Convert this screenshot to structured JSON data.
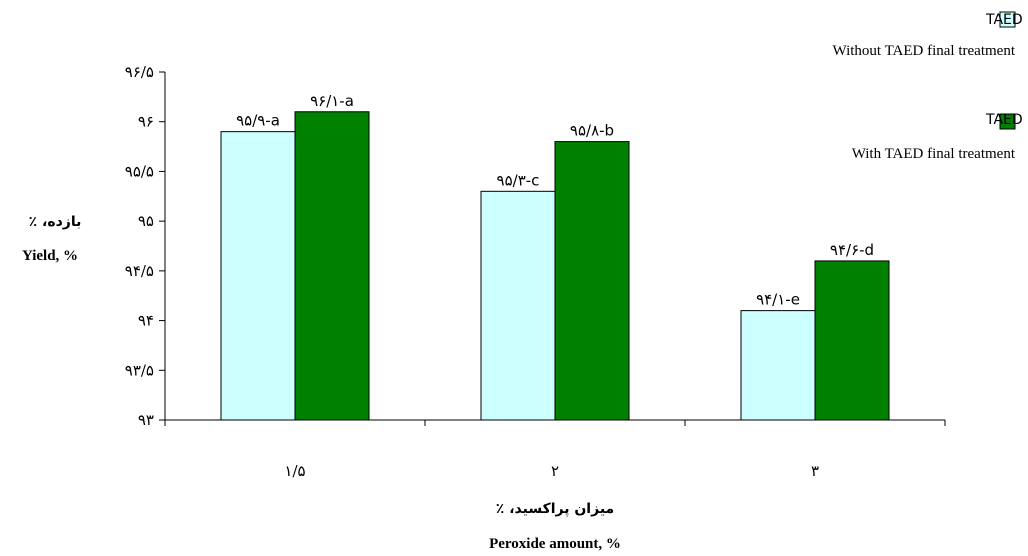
{
  "chart_data": {
    "type": "bar",
    "categories": [
      "۱/۵",
      "۲",
      "۳"
    ],
    "series": [
      {
        "name_fa": "رنگ‌بری بدون تیمار انتهایی TAED",
        "name_en": "Without TAED final treatment",
        "color": "#ccffff",
        "values": [
          95.9,
          95.3,
          94.1
        ],
        "labels": [
          "۹۵/۹-a",
          "۹۵/۳-c",
          "۹۴/۱-e"
        ]
      },
      {
        "name_fa": "رنگ‌بری با تیمار انتهایی TAED",
        "name_en": "With TAED final treatment",
        "color": "#008000",
        "values": [
          96.1,
          95.8,
          94.6
        ],
        "labels": [
          "۹۶/۱-a",
          "۹۵/۸-b",
          "۹۴/۶-d"
        ]
      }
    ],
    "ylim": [
      93,
      96.5
    ],
    "yticks": [
      93,
      93.5,
      94,
      94.5,
      95,
      95.5,
      96,
      96.5
    ],
    "ytick_labels": [
      "۹۳",
      "۹۳/۵",
      "۹۴",
      "۹۴/۵",
      "۹۵",
      "۹۵/۵",
      "۹۶",
      "۹۶/۵"
    ],
    "ylabel_fa": "بازده، ٪",
    "ylabel_en": "Yield, %",
    "xlabel_fa": "میزان پراکسید، ٪",
    "xlabel_en": "Peroxide amount, %",
    "grid": false,
    "legend": "top-right"
  }
}
